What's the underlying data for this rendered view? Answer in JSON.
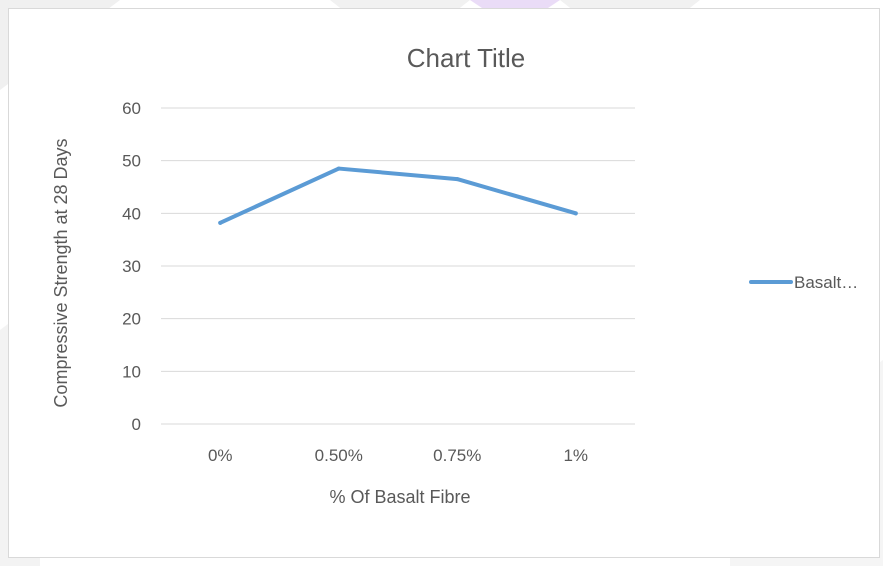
{
  "chart_data": {
    "type": "line",
    "title": "Chart Title",
    "xlabel": "% Of Basalt Fibre",
    "ylabel": "Compressive Strength at 28 Days",
    "categories": [
      "0%",
      "0.50%",
      "0.75%",
      "1%"
    ],
    "series": [
      {
        "name": "Basalt…",
        "values": [
          38.2,
          48.5,
          46.5,
          40.0
        ],
        "color": "#5b9bd5"
      }
    ],
    "ylim": [
      0,
      60
    ],
    "yticks": [
      "0",
      "10",
      "20",
      "30",
      "40",
      "50",
      "60"
    ],
    "grid": true,
    "legend_position": "right"
  }
}
